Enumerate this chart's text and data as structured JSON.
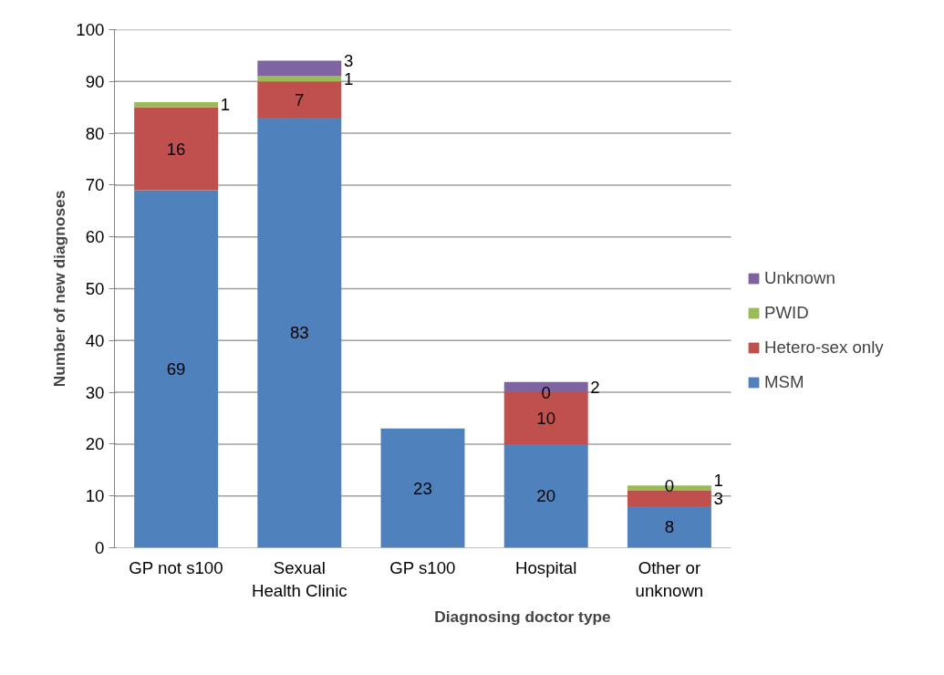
{
  "chart_data": {
    "type": "bar",
    "stacked": true,
    "xlabel": "Diagnosing doctor type",
    "ylabel": "Number of new diagnoses",
    "categories": [
      "GP not s100",
      "Sexual\nHealth Clinic",
      "GP s100",
      "Hospital",
      "Other or\nunknown"
    ],
    "series": [
      {
        "name": "MSM",
        "color": "#4f81bd",
        "values": [
          69,
          83,
          23,
          20,
          8
        ],
        "value_labels": [
          "69",
          "83",
          "23",
          "20",
          "8"
        ]
      },
      {
        "name": "Hetero-sex only",
        "color": "#c0504d",
        "values": [
          16,
          7,
          0,
          10,
          3
        ],
        "value_labels": [
          "16",
          "7",
          null,
          "10",
          "3"
        ]
      },
      {
        "name": "PWID",
        "color": "#9bbb59",
        "values": [
          1,
          1,
          0,
          0,
          1
        ],
        "value_labels": [
          "1",
          "1",
          null,
          "0",
          "1"
        ]
      },
      {
        "name": "Unknown",
        "color": "#8064a2",
        "values": [
          0,
          3,
          0,
          2,
          0
        ],
        "value_labels": [
          null,
          "3",
          null,
          "2",
          "0"
        ]
      }
    ],
    "ylim": [
      0,
      100
    ],
    "yticks": [
      0,
      10,
      20,
      30,
      40,
      50,
      60,
      70,
      80,
      90,
      100
    ],
    "grid": "y",
    "legend": "right"
  }
}
